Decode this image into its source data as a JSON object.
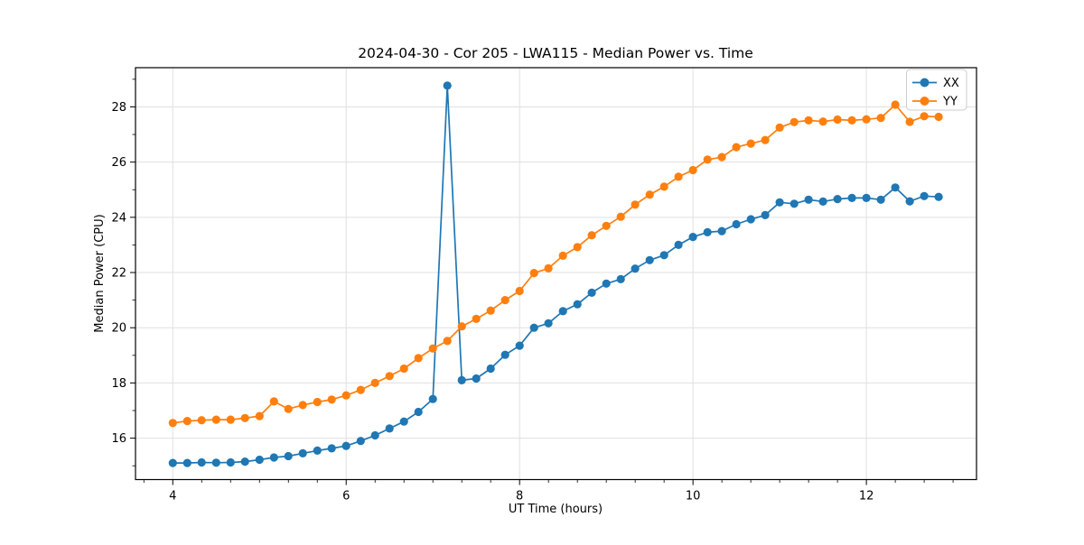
{
  "chart_data": {
    "type": "line",
    "title": "2024-04-30 - Cor 205 - LWA115 - Median Power vs. Time",
    "xlabel": "UT Time (hours)",
    "ylabel": "Median Power (CPU)",
    "xlim": [
      3.57,
      13.27
    ],
    "ylim": [
      14.5,
      29.42
    ],
    "x_ticks": [
      4,
      6,
      8,
      10,
      12
    ],
    "y_ticks": [
      16,
      18,
      20,
      22,
      24,
      26,
      28
    ],
    "x_minor_step": 0.3333,
    "y_minor_ticks": [
      15,
      17,
      19,
      21,
      23,
      25,
      27,
      29
    ],
    "grid": true,
    "grid_color": "#e0e0e0",
    "legend_position": "upper right",
    "x": [
      4.0,
      4.167,
      4.333,
      4.5,
      4.667,
      4.833,
      5.0,
      5.167,
      5.333,
      5.5,
      5.667,
      5.833,
      6.0,
      6.167,
      6.333,
      6.5,
      6.667,
      6.833,
      7.0,
      7.167,
      7.333,
      7.5,
      7.667,
      7.833,
      8.0,
      8.167,
      8.333,
      8.5,
      8.667,
      8.833,
      9.0,
      9.167,
      9.333,
      9.5,
      9.667,
      9.833,
      10.0,
      10.167,
      10.333,
      10.5,
      10.667,
      10.833,
      11.0,
      11.167,
      11.333,
      11.5,
      11.667,
      11.833,
      12.0,
      12.167,
      12.333,
      12.5,
      12.667,
      12.833
    ],
    "series": [
      {
        "name": "XX",
        "color": "#1f77b4",
        "values": [
          15.1,
          15.1,
          15.12,
          15.11,
          15.12,
          15.15,
          15.22,
          15.3,
          15.35,
          15.45,
          15.55,
          15.63,
          15.72,
          15.9,
          16.1,
          16.35,
          16.6,
          16.95,
          17.42,
          28.77,
          18.1,
          18.16,
          18.52,
          19.02,
          19.35,
          20.0,
          20.16,
          20.6,
          20.85,
          21.27,
          21.6,
          21.76,
          22.14,
          22.45,
          22.63,
          23.0,
          23.29,
          23.46,
          23.5,
          23.75,
          23.93,
          24.08,
          24.54,
          24.49,
          24.64,
          24.57,
          24.66,
          24.7,
          24.7,
          24.64,
          25.08,
          24.58,
          24.77,
          24.74
        ]
      },
      {
        "name": "YY",
        "color": "#ff7f0e",
        "values": [
          16.55,
          16.62,
          16.65,
          16.67,
          16.67,
          16.73,
          16.8,
          17.33,
          17.06,
          17.2,
          17.31,
          17.4,
          17.55,
          17.75,
          18.0,
          18.25,
          18.52,
          18.9,
          19.25,
          19.52,
          20.05,
          20.32,
          20.62,
          21.0,
          21.33,
          21.98,
          22.15,
          22.61,
          22.92,
          23.35,
          23.69,
          24.02,
          24.46,
          24.82,
          25.11,
          25.47,
          25.71,
          26.09,
          26.18,
          26.54,
          26.67,
          26.8,
          27.25,
          27.45,
          27.51,
          27.47,
          27.54,
          27.51,
          27.55,
          27.6,
          28.08,
          27.46,
          27.66,
          27.64
        ]
      }
    ]
  }
}
